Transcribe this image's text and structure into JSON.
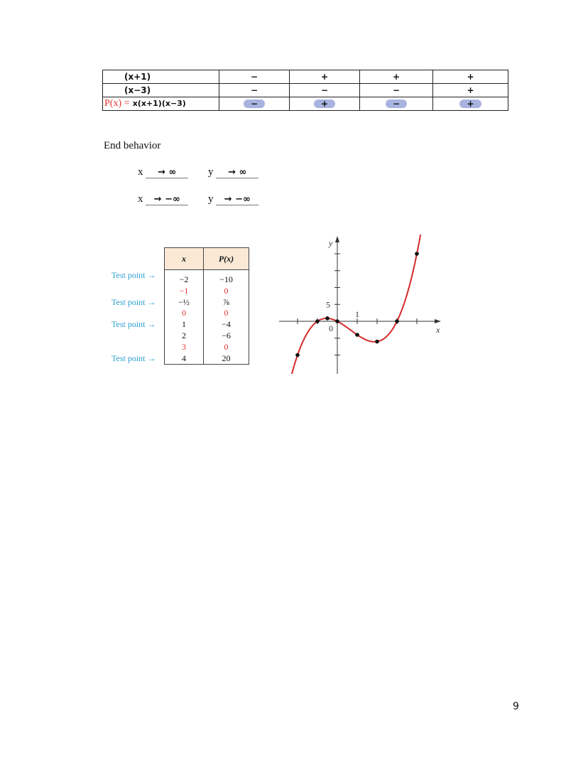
{
  "sign_table": {
    "rows": [
      {
        "label": "(x+1)",
        "signs": [
          "−",
          "+",
          "+",
          "+"
        ]
      },
      {
        "label": "(x−3)",
        "signs": [
          "−",
          "−",
          "−",
          "+"
        ]
      },
      {
        "label_prefix": "P(x) =",
        "label": "x(x+1)(x−3)",
        "signs": [
          "−",
          "+",
          "−",
          "+"
        ],
        "highlighted": true
      }
    ]
  },
  "end_behavior": {
    "heading": "End behavior",
    "rows": [
      {
        "x_label": "x",
        "x_value": "→ ∞",
        "y_label": "y",
        "y_value": "→ ∞"
      },
      {
        "x_label": "x",
        "x_value": "→ −∞",
        "y_label": "y",
        "y_value": "→ −∞"
      }
    ]
  },
  "value_table": {
    "headers": [
      "x",
      "P(x)"
    ],
    "test_point_label": "Test point →",
    "rows": [
      {
        "x": "−2",
        "p": "−10",
        "test": true,
        "red": false
      },
      {
        "x": "−1",
        "p": "0",
        "test": false,
        "red": true
      },
      {
        "x": "−½",
        "p": "⅞",
        "test": true,
        "red": false
      },
      {
        "x": "0",
        "p": "0",
        "test": false,
        "red": true
      },
      {
        "x": "1",
        "p": "−4",
        "test": true,
        "red": false
      },
      {
        "x": "2",
        "p": "−6",
        "test": false,
        "red": false
      },
      {
        "x": "3",
        "p": "0",
        "test": false,
        "red": true
      },
      {
        "x": "4",
        "p": "20",
        "test": true,
        "red": false
      }
    ]
  },
  "chart_data": {
    "type": "line",
    "function": "P(x) = x(x+1)(x−3)",
    "xlabel": "x",
    "ylabel": "y",
    "tick_labels": {
      "origin": "0",
      "x": "1",
      "y": "5"
    },
    "points": [
      [
        -2,
        -10
      ],
      [
        -1,
        0
      ],
      [
        -0.5,
        0.875
      ],
      [
        0,
        0
      ],
      [
        1,
        -4
      ],
      [
        2,
        -6
      ],
      [
        3,
        0
      ],
      [
        4,
        20
      ]
    ],
    "xlim": [
      -3,
      5
    ],
    "ylim": [
      -15,
      25
    ],
    "curve_color": "#d42a2a"
  },
  "page_number": "9"
}
